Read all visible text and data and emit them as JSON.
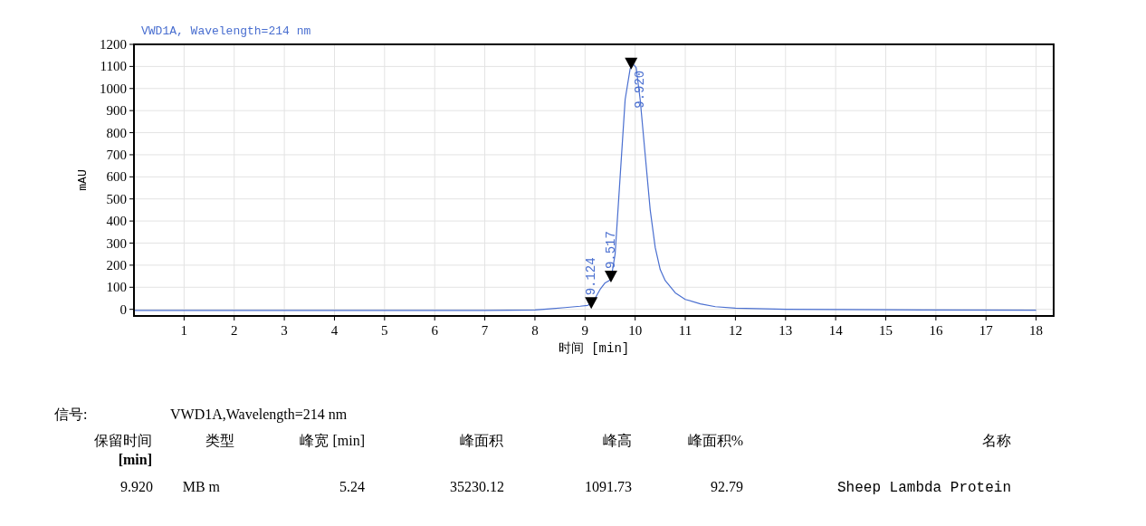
{
  "chart_data": {
    "type": "line",
    "title": "VWD1A, Wavelength=214 nm",
    "xlabel": "时间 [min]",
    "ylabel": "mAU",
    "xlim": [
      0,
      18.35
    ],
    "ylim": [
      -30,
      1200
    ],
    "xticks": [
      1,
      2,
      3,
      4,
      5,
      6,
      7,
      8,
      9,
      10,
      11,
      12,
      13,
      14,
      15,
      16,
      17,
      18
    ],
    "yticks": [
      0,
      100,
      200,
      300,
      400,
      500,
      600,
      700,
      800,
      900,
      1000,
      1100,
      1200
    ],
    "grid": true,
    "line_style": "solid",
    "series": [
      {
        "color": "#4a6fd0",
        "x": [
          0,
          2,
          4,
          6,
          7,
          7.5,
          8,
          8.3,
          8.6,
          8.9,
          9.05,
          9.124,
          9.2,
          9.3,
          9.4,
          9.517,
          9.6,
          9.7,
          9.8,
          9.9,
          9.96,
          10.02,
          10.1,
          10.2,
          10.3,
          10.4,
          10.5,
          10.6,
          10.8,
          11,
          11.3,
          11.6,
          12,
          13,
          15,
          18
        ],
        "values": [
          -5,
          -5,
          -5,
          -5,
          -5,
          -4,
          -3,
          2,
          8,
          14,
          18,
          25,
          50,
          90,
          120,
          135,
          250,
          600,
          950,
          1090,
          1110,
          1095,
          950,
          700,
          450,
          280,
          180,
          130,
          75,
          45,
          25,
          12,
          5,
          0,
          -2,
          -4
        ]
      },
      {
        "type": "scatter",
        "marker": "triangle",
        "color": "#000000",
        "x": [
          9.124,
          9.517,
          9.92
        ],
        "values": [
          30,
          150,
          1115
        ]
      }
    ],
    "annotations": [
      {
        "text": "9.124",
        "x": 9.124,
        "y": 30
      },
      {
        "text": "9.517",
        "x": 9.517,
        "y": 150
      },
      {
        "text": "9.920",
        "x": 9.92,
        "y": 1115
      },
      "信号:",
      "VWD1A,Wavelength=214 nm",
      "保留时间\n[min]",
      "类型",
      "峰宽 [min]",
      "峰面积",
      "峰高",
      "峰面积%",
      "名称",
      "9.920",
      "MB m",
      "5.24",
      "35230.12",
      "1091.73",
      "92.79",
      "Sheep Lambda Protein"
    ]
  }
}
